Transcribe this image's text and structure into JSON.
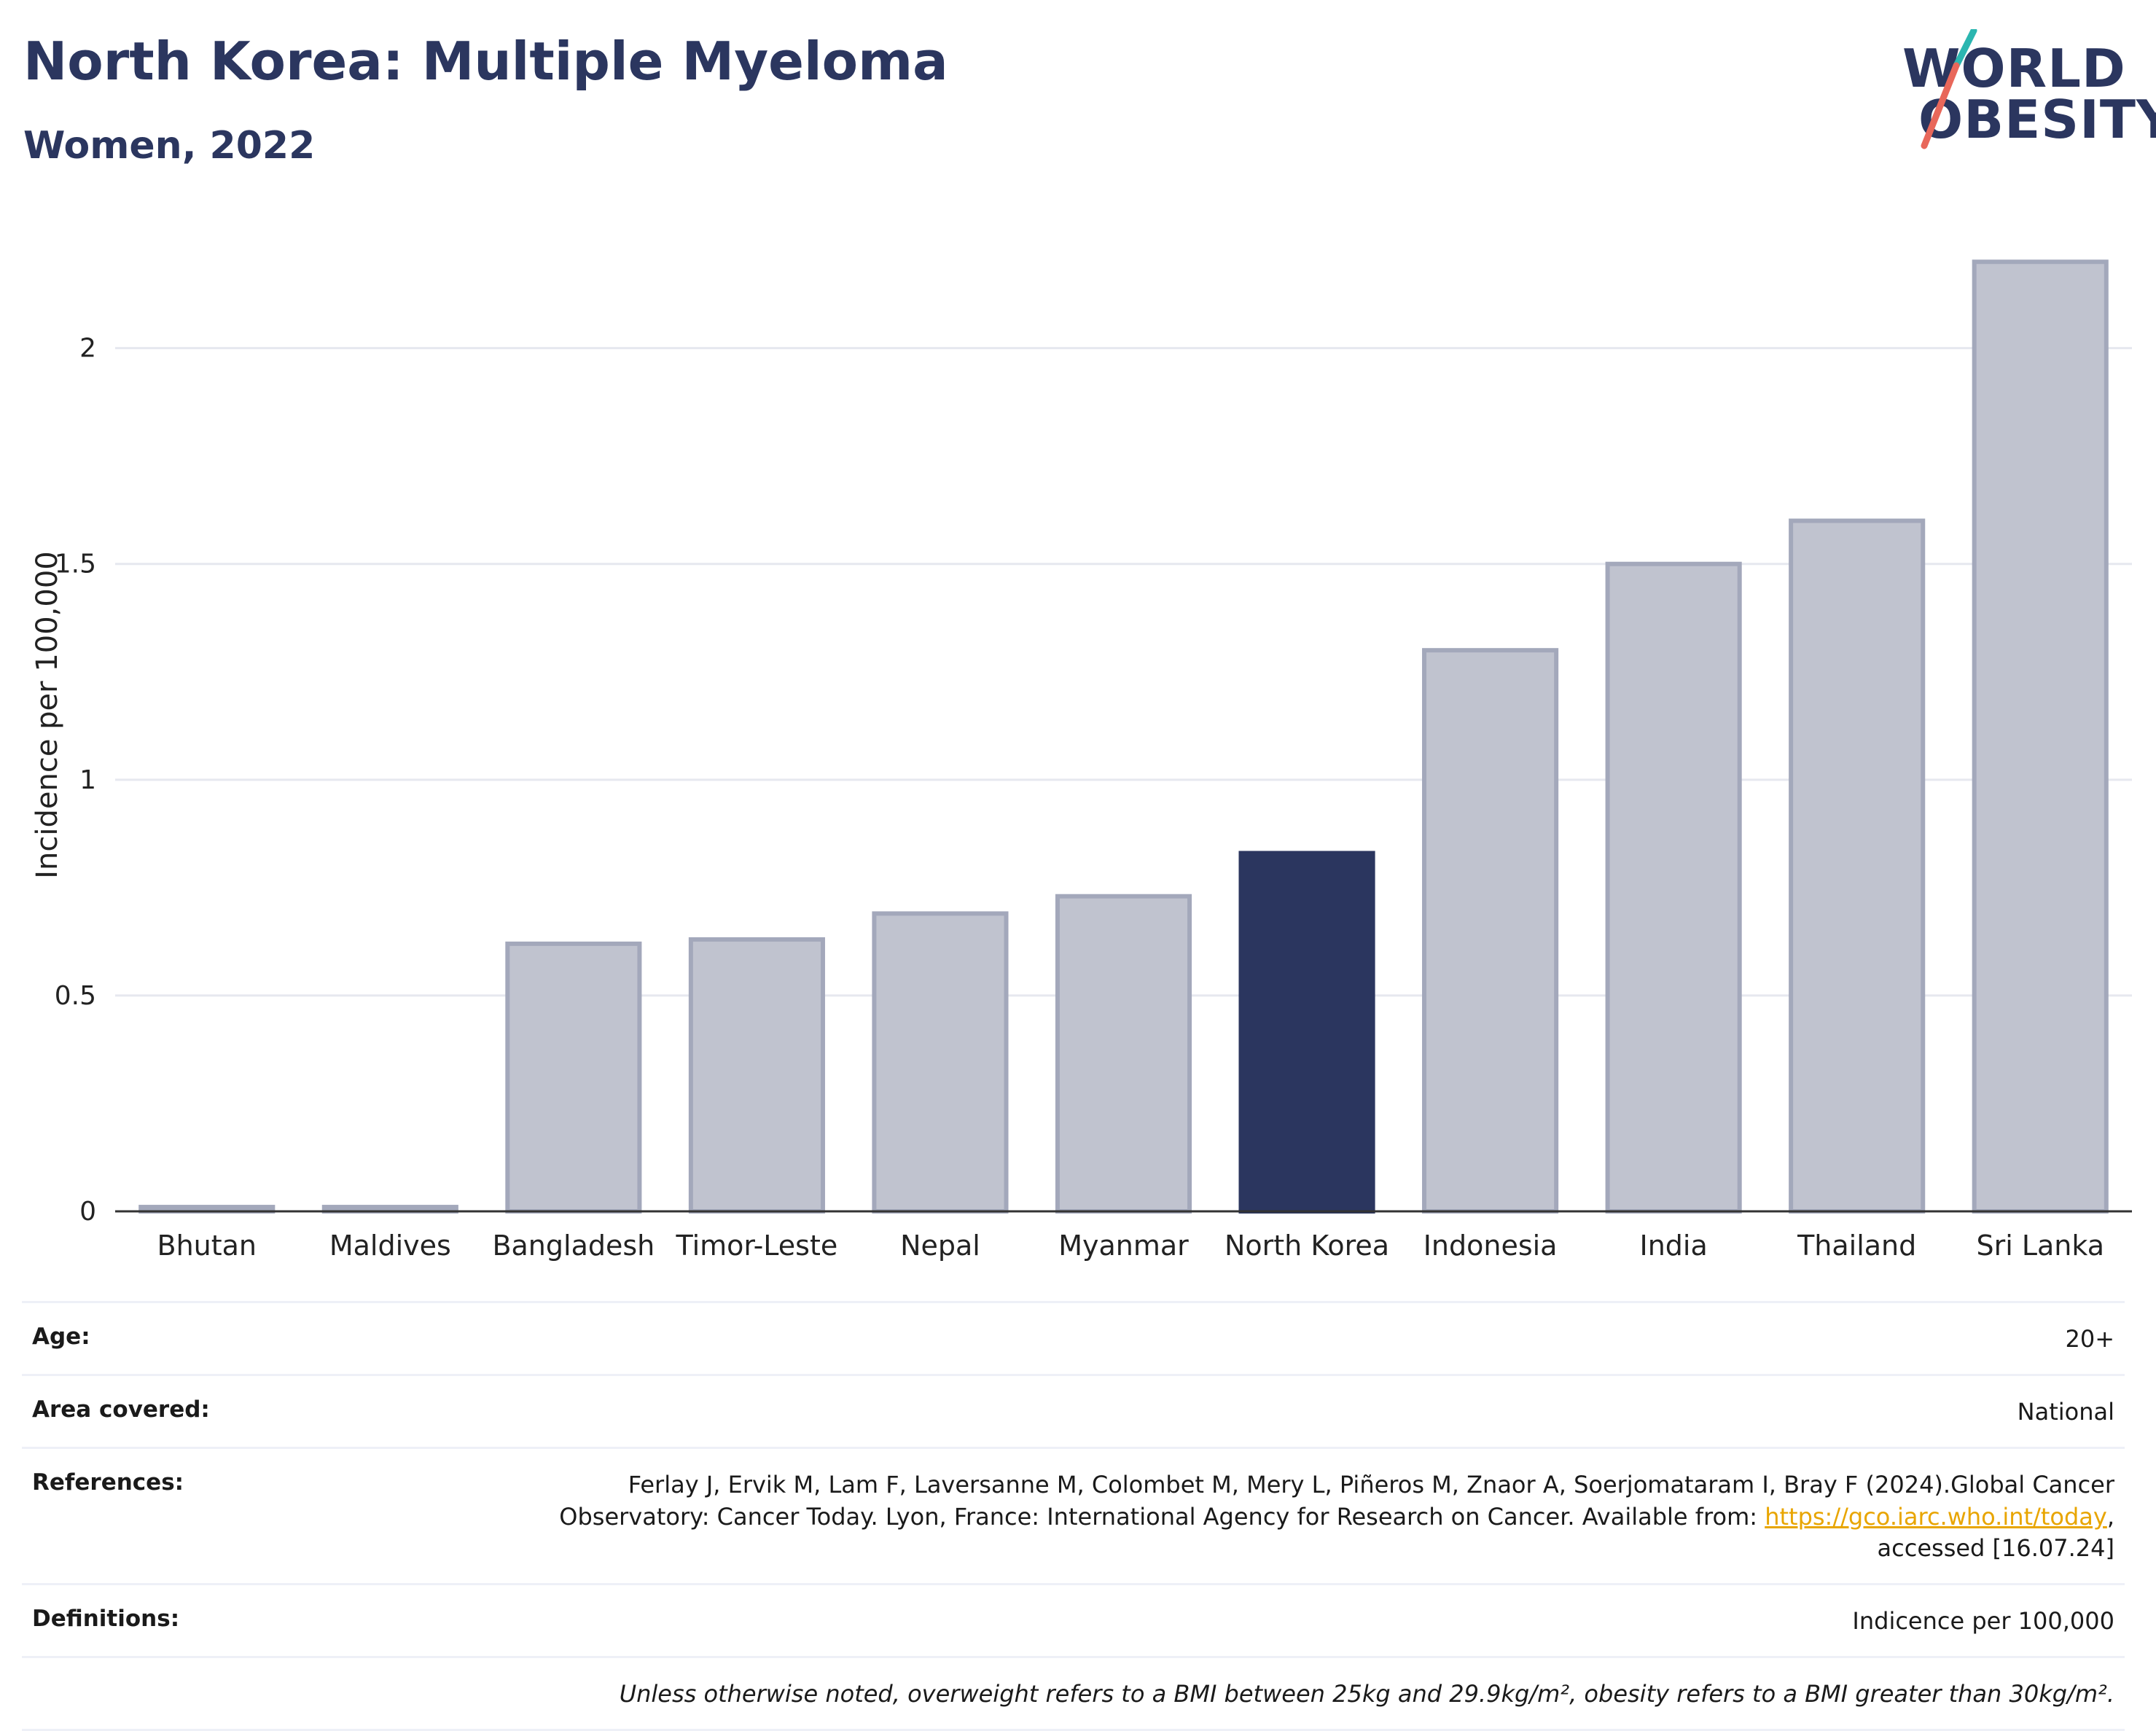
{
  "header": {
    "title": "North Korea: Multiple Myeloma",
    "subtitle": "Women, 2022"
  },
  "logo": {
    "line1": "WORLD",
    "line2": "OBESITY",
    "colors": {
      "text": "#2b365f",
      "slash_top": "#2bb6b0",
      "slash_bottom": "#e8675a"
    }
  },
  "chart_data": {
    "type": "bar",
    "categories": [
      "Bhutan",
      "Maldives",
      "Bangladesh",
      "Timor-Leste",
      "Nepal",
      "Myanmar",
      "North Korea",
      "Indonesia",
      "India",
      "Thailand",
      "Sri Lanka"
    ],
    "values": [
      0.01,
      0.01,
      0.62,
      0.63,
      0.69,
      0.73,
      0.83,
      1.3,
      1.5,
      1.6,
      2.2
    ],
    "highlight": "North Korea",
    "ylabel": "Incidence per 100,000",
    "xlabel": "",
    "ylim": [
      0,
      2.3
    ],
    "yticks": [
      0,
      0.5,
      1,
      1.5,
      2
    ],
    "ytick_labels": [
      "0",
      "0.5",
      "1",
      "1.5",
      "2"
    ],
    "grid": true,
    "colors": {
      "bar": "#c0c3cf",
      "bar_border": "#a3a8bb",
      "highlight": "#2b365f",
      "grid": "#e6e8ef",
      "axis": "#333333"
    }
  },
  "meta": {
    "age": {
      "label": "Age:",
      "value": "20+"
    },
    "area": {
      "label": "Area covered:",
      "value": "National"
    },
    "references": {
      "label": "References:",
      "line1": "Ferlay J, Ervik M, Lam F, Laversanne M, Colombet M, Mery L, Piñeros M, Znaor A, Soerjomataram I, Bray F (2024).Global Cancer",
      "line2_pre": "Observatory: Cancer Today. Lyon, France: International Agency for Research on Cancer. Available from: ",
      "link": "https://gco.iarc.who.int/today",
      "line2_post": ",",
      "line3": "accessed [16.07.24]"
    },
    "definitions": {
      "label": "Definitions:",
      "value": "Indicence per 100,000"
    },
    "footnote": "Unless otherwise noted, overweight refers to a BMI between 25kg and 29.9kg/m², obesity refers to a BMI greater than 30kg/m²."
  }
}
